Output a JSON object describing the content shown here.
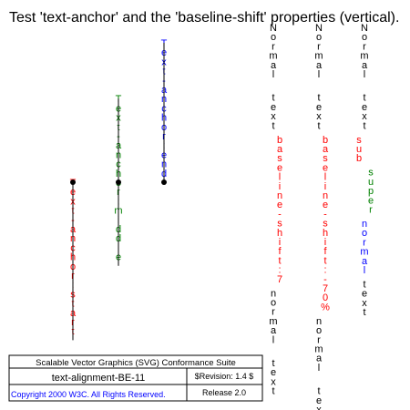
{
  "title": "Test 'text-anchor' and the 'baseline-shift' properties (vertical).",
  "anchor_demo": [
    {
      "text": "Text-anchor:start",
      "color": "#ff0000"
    },
    {
      "text": "Text-anchor:middle",
      "color": "#008000"
    },
    {
      "text": "Text-anchor:end",
      "color": "#0000ff"
    }
  ],
  "baseline_demo": [
    {
      "segments": [
        {
          "text": "Normal text",
          "color": "#000000",
          "shift": "normal"
        },
        {
          "text": "baseline-shift:7",
          "color": "#ff0000",
          "shift": "shifted"
        },
        {
          "text": "normal text",
          "color": "#000000",
          "shift": "normal"
        }
      ]
    },
    {
      "segments": [
        {
          "text": "Normal text",
          "color": "#000000",
          "shift": "normal"
        },
        {
          "text": "baseline-shift:-70%",
          "color": "#ff0000",
          "shift": "shifted"
        },
        {
          "text": "normal text",
          "color": "#000000",
          "shift": "normal"
        }
      ]
    },
    {
      "segments": [
        {
          "text": "Normal text",
          "color": "#000000",
          "shift": "normal"
        },
        {
          "text": "sub",
          "color": "#ff0000",
          "shift": "sub"
        },
        {
          "text": "super",
          "color": "#008000",
          "shift": "super"
        },
        {
          "text": "normal",
          "color": "#0000ff",
          "shift": "normal"
        },
        {
          "text": "text",
          "color": "#000000",
          "shift": "normal"
        }
      ]
    }
  ],
  "footer": {
    "suite": "Scalable Vector Graphics (SVG) Conformance Suite",
    "test_name": "text-alignment-BE-11",
    "revision": "$Revision: 1.4 $",
    "copyright": "Copyright 2000 W3C. All Rights Reserved.",
    "release": "Release 2.0"
  },
  "colors": {
    "copyright": "#0000ff",
    "marker": "#000000"
  }
}
